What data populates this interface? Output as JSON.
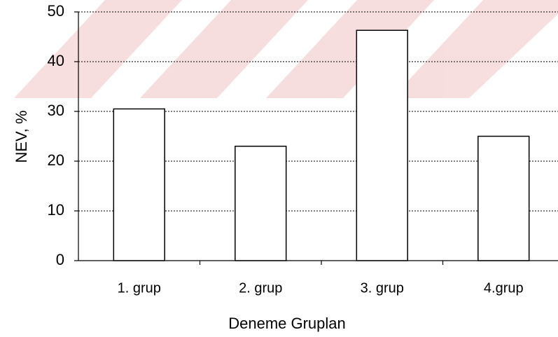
{
  "chart_data": {
    "type": "bar",
    "categories": [
      "1. grup",
      "2. grup",
      "3. grup",
      "4.grup"
    ],
    "values": [
      30.5,
      23,
      46.3,
      25
    ],
    "color": "#ffffff",
    "ylim": [
      0,
      50
    ],
    "yticks": [
      0,
      10,
      20,
      30,
      40,
      50
    ],
    "grid": true,
    "ylabel": "NEV, %",
    "xlabel": "Deneme Gruplan"
  }
}
